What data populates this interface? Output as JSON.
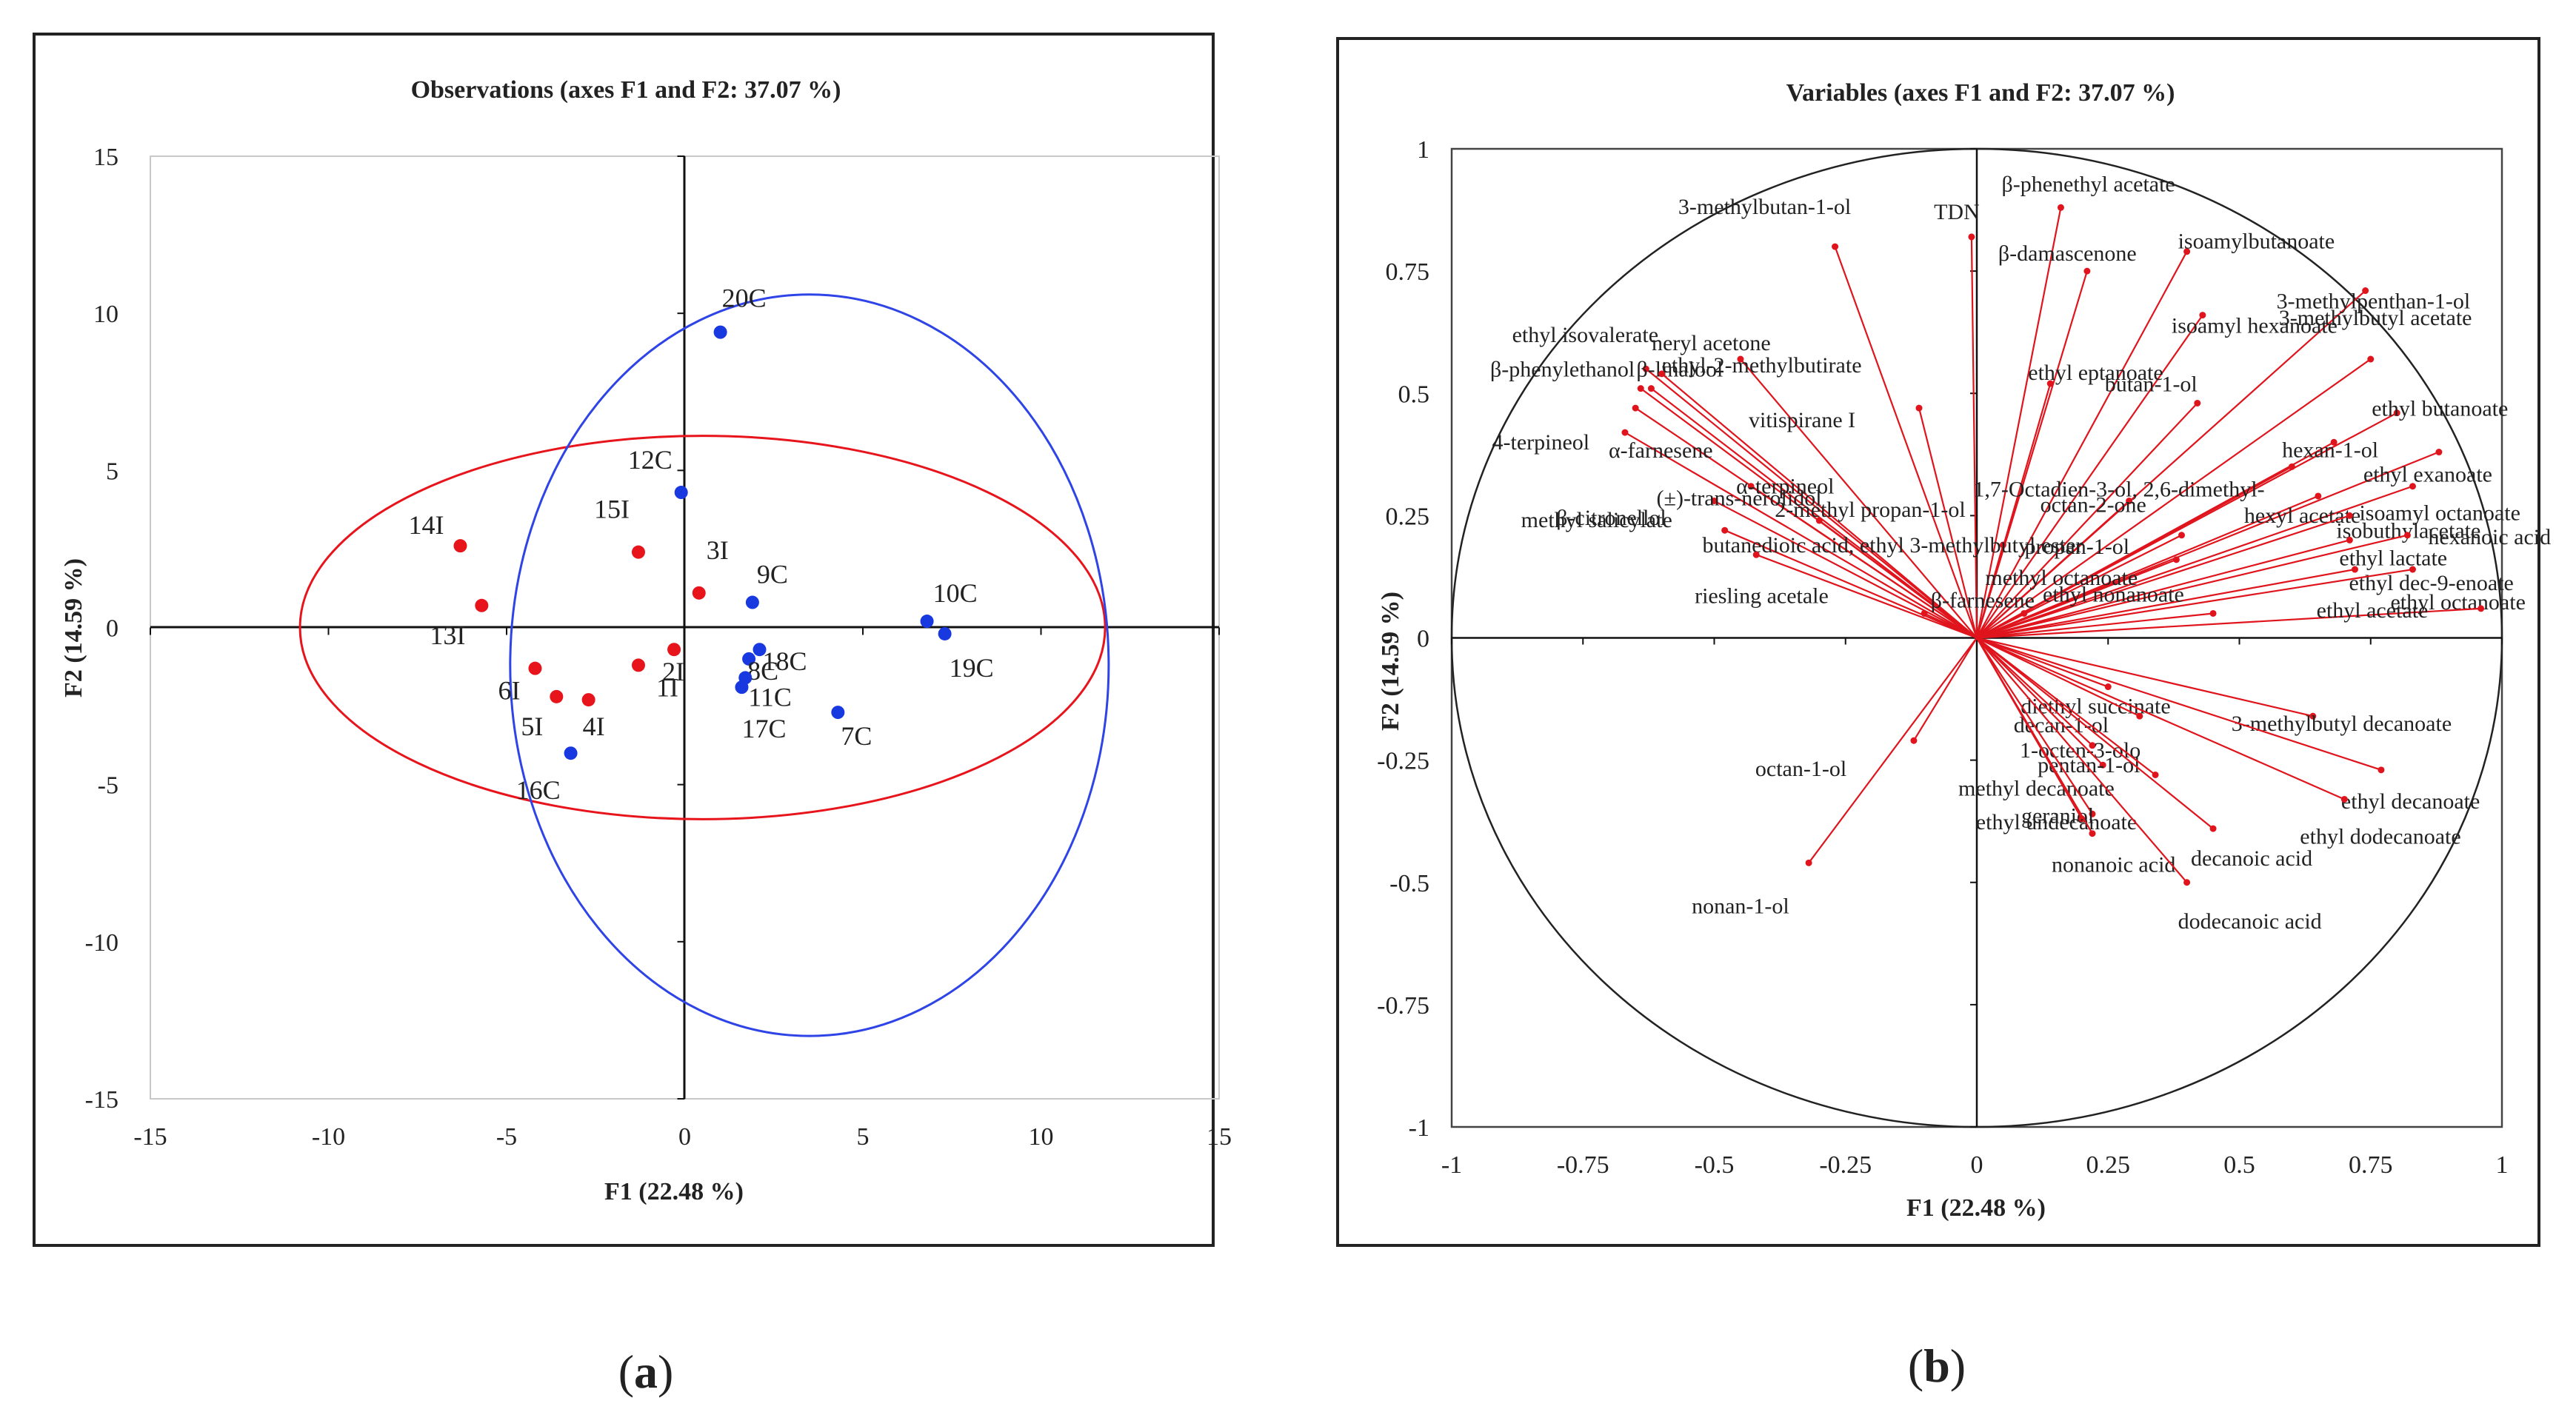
{
  "chart_data": [
    {
      "type": "scatter",
      "title": "Observations (axes F1 and F2: 37.07 %)",
      "xlabel": "F1 (22.48 %)",
      "ylabel": "F2 (14.59 %)",
      "xlim": [
        -15,
        15
      ],
      "ylim": [
        -15,
        15
      ],
      "xticks": [
        "-15",
        "-10",
        "-5",
        "0",
        "5",
        "10",
        "15"
      ],
      "yticks": [
        "15",
        "10",
        "5",
        "0",
        "-5",
        "-10",
        "-15"
      ],
      "series": [
        {
          "name": "I",
          "color": "#e8141c",
          "points": [
            {
              "label": "14I",
              "x": -6.3,
              "y": 2.6
            },
            {
              "label": "13I",
              "x": -5.7,
              "y": 0.7
            },
            {
              "label": "15I",
              "x": -1.3,
              "y": 2.4
            },
            {
              "label": "3I",
              "x": 0.4,
              "y": 1.1
            },
            {
              "label": "6I",
              "x": -4.2,
              "y": -1.3
            },
            {
              "label": "5I",
              "x": -3.6,
              "y": -2.2
            },
            {
              "label": "4I",
              "x": -2.7,
              "y": -2.3
            },
            {
              "label": "1I",
              "x": -1.3,
              "y": -1.2
            },
            {
              "label": "2I",
              "x": -0.3,
              "y": -0.7
            }
          ]
        },
        {
          "name": "C",
          "color": "#1838e0",
          "points": [
            {
              "label": "20C",
              "x": 1.0,
              "y": 9.4
            },
            {
              "label": "12C",
              "x": -0.1,
              "y": 4.3
            },
            {
              "label": "9C",
              "x": 1.9,
              "y": 0.8
            },
            {
              "label": "10C",
              "x": 6.8,
              "y": 0.2
            },
            {
              "label": "19C",
              "x": 7.3,
              "y": -0.2
            },
            {
              "label": "18C",
              "x": 2.1,
              "y": -0.7
            },
            {
              "label": "8C",
              "x": 1.8,
              "y": -1.0
            },
            {
              "label": "11C",
              "x": 1.7,
              "y": -1.6
            },
            {
              "label": "17C",
              "x": 1.6,
              "y": -1.9
            },
            {
              "label": "7C",
              "x": 4.3,
              "y": -2.7
            },
            {
              "label": "16C",
              "x": -3.2,
              "y": -4.0
            }
          ]
        }
      ],
      "ellipses": [
        {
          "color": "#e8141c",
          "center": [
            0.5,
            0.0
          ],
          "rx": 11.3,
          "ry": 6.1
        },
        {
          "color": "#2e44e6",
          "center": [
            3.5,
            -1.2
          ],
          "rx": 8.4,
          "ry": 11.8
        }
      ],
      "sublabel_open": "(",
      "sublabel": "a",
      "sublabel_close": ")"
    },
    {
      "type": "correlation-circle",
      "title": "Variables (axes F1 and F2: 37.07 %)",
      "xlabel": "F1 (22.48 %)",
      "ylabel": "F2 (14.59 %)",
      "xlim": [
        -1,
        1
      ],
      "ylim": [
        -1,
        1
      ],
      "xticks": [
        "-1",
        "-0.75",
        "-0.5",
        "-0.25",
        "0",
        "0.25",
        "0.5",
        "0.75",
        "1"
      ],
      "yticks": [
        "1",
        "0.75",
        "0.5",
        "0.25",
        "0",
        "-0.25",
        "-0.5",
        "-0.75",
        "-1"
      ],
      "arrow_color": "#e0141c",
      "variables": [
        {
          "label": "TDN",
          "x": -0.01,
          "y": 0.82
        },
        {
          "label": "β-phenethyl acetate",
          "x": 0.16,
          "y": 0.88
        },
        {
          "label": "isoamylbutanoate",
          "x": 0.4,
          "y": 0.79
        },
        {
          "label": "3-methylbutan-1-ol",
          "x": -0.27,
          "y": 0.8
        },
        {
          "label": "β-damascenone",
          "x": 0.21,
          "y": 0.75
        },
        {
          "label": "3-methylpenthan-1-ol",
          "x": 0.74,
          "y": 0.71
        },
        {
          "label": "ethyl isovalerate",
          "x": -0.63,
          "y": 0.55
        },
        {
          "label": "β-linalool",
          "x": -0.62,
          "y": 0.51
        },
        {
          "label": "neryl acetone",
          "x": -0.45,
          "y": 0.57
        },
        {
          "label": "ethyl-2-methylbutirate",
          "x": -0.6,
          "y": 0.54
        },
        {
          "label": "isoamyl hexanoate",
          "x": 0.43,
          "y": 0.66
        },
        {
          "label": "β-phenylethanol",
          "x": -0.64,
          "y": 0.51
        },
        {
          "label": "vitispirane I",
          "x": -0.11,
          "y": 0.47
        },
        {
          "label": "ethyl eptanoate",
          "x": 0.14,
          "y": 0.52
        },
        {
          "label": "3-methylbutyl acetate",
          "x": 0.75,
          "y": 0.57
        },
        {
          "label": "4-terpineol",
          "x": -0.65,
          "y": 0.47
        },
        {
          "label": "butan-1-ol",
          "x": 0.42,
          "y": 0.48
        },
        {
          "label": "ethyl butanoate",
          "x": 0.8,
          "y": 0.46
        },
        {
          "label": "α-farnesene",
          "x": -0.67,
          "y": 0.42
        },
        {
          "label": "hexan-1-ol",
          "x": 0.68,
          "y": 0.4
        },
        {
          "label": "ethyl exanoate",
          "x": 0.88,
          "y": 0.38
        },
        {
          "label": "1,7-Octadien-3-ol, 2,6-dimethyl-",
          "x": 0.6,
          "y": 0.35
        },
        {
          "label": "α-terpineol",
          "x": -0.43,
          "y": 0.31
        },
        {
          "label": "isoamyl octanoate",
          "x": 0.83,
          "y": 0.31
        },
        {
          "label": "(±)-trans-nerolidol",
          "x": -0.5,
          "y": 0.28
        },
        {
          "label": "octan-2-one",
          "x": 0.29,
          "y": 0.28
        },
        {
          "label": "hexyl acetate",
          "x": 0.65,
          "y": 0.29
        },
        {
          "label": "2-methyl propan-1-ol",
          "x": -0.3,
          "y": 0.24
        },
        {
          "label": "isobuthylacetate",
          "x": 0.71,
          "y": 0.25
        },
        {
          "label": "methyl salicylate",
          "x": -0.48,
          "y": 0.22
        },
        {
          "label": "butanedioic acid, ethyl 3-methylbutyl ester",
          "x": 0.05,
          "y": 0.19
        },
        {
          "label": "propan-1-ol",
          "x": 0.39,
          "y": 0.21
        },
        {
          "label": "ethyl lactate",
          "x": 0.71,
          "y": 0.2
        },
        {
          "label": "hexanoic acid",
          "x": 0.82,
          "y": 0.21
        },
        {
          "label": "β-citronellol",
          "x": -0.42,
          "y": 0.17
        },
        {
          "label": "methyl octanoate",
          "x": 0.38,
          "y": 0.16
        },
        {
          "label": "ethyl dec-9-enoate",
          "x": 0.72,
          "y": 0.14
        },
        {
          "label": "riesling acetale",
          "x": -0.1,
          "y": 0.05
        },
        {
          "label": "β-farnesene",
          "x": 0.09,
          "y": 0.05
        },
        {
          "label": "ethyl octanoate",
          "x": 0.83,
          "y": 0.14
        },
        {
          "label": "ethyl nonanoate",
          "x": 0.45,
          "y": 0.05
        },
        {
          "label": "ethyl acetate",
          "x": 0.96,
          "y": 0.06
        },
        {
          "label": "diethyl succinate",
          "x": 0.25,
          "y": -0.1
        },
        {
          "label": "decan-1-ol",
          "x": 0.31,
          "y": -0.16
        },
        {
          "label": "3-methylbutyl decanoate",
          "x": 0.64,
          "y": -0.16
        },
        {
          "label": "1-octen-3-olo",
          "x": 0.22,
          "y": -0.22
        },
        {
          "label": "pentan-1-ol",
          "x": 0.24,
          "y": -0.26
        },
        {
          "label": "octan-1-ol",
          "x": -0.12,
          "y": -0.21
        },
        {
          "label": "ethyl decanoate",
          "x": 0.77,
          "y": -0.27
        },
        {
          "label": "methyl decanoate",
          "x": 0.34,
          "y": -0.28
        },
        {
          "label": "geraniol",
          "x": 0.22,
          "y": -0.36
        },
        {
          "label": "ethyl undecanoate",
          "x": 0.2,
          "y": -0.37
        },
        {
          "label": "ethyl dodecanoate",
          "x": 0.7,
          "y": -0.33
        },
        {
          "label": "nonanoic acid",
          "x": 0.22,
          "y": -0.4
        },
        {
          "label": "decanoic acid",
          "x": 0.45,
          "y": -0.39
        },
        {
          "label": "nonan-1-ol",
          "x": -0.32,
          "y": -0.46
        },
        {
          "label": "dodecanoic acid",
          "x": 0.4,
          "y": -0.5
        }
      ],
      "sublabel_open": "(",
      "sublabel": "b",
      "sublabel_close": ")"
    }
  ]
}
